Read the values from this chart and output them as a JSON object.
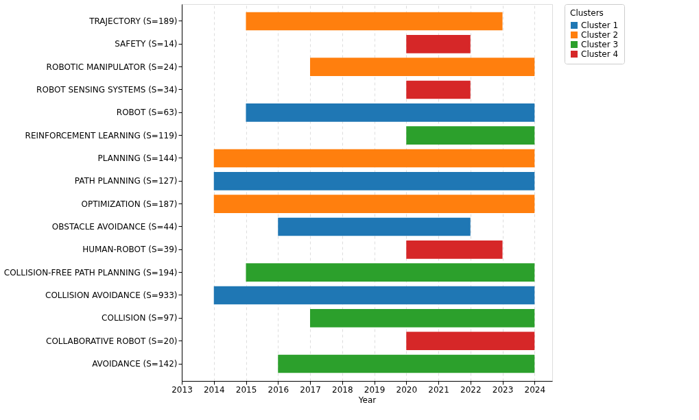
{
  "chart_data": {
    "type": "bar",
    "orientation": "horizontal",
    "xlabel": "Year",
    "legend_title": "Clusters",
    "legend": "top right",
    "grid": "x",
    "categories": [
      "TRAJECTORY (S=189)",
      "SAFETY (S=14)",
      "ROBOTIC MANIPULATOR (S=24)",
      "ROBOT SENSING SYSTEMS (S=34)",
      "ROBOT (S=63)",
      "REINFORCEMENT LEARNING (S=119)",
      "PLANNING (S=144)",
      "PATH PLANNING (S=127)",
      "OPTIMIZATION (S=187)",
      "OBSTACLE AVOIDANCE (S=44)",
      "HUMAN-ROBOT (S=39)",
      "COLLISION-FREE PATH PLANNING (S=194)",
      "COLLISION AVOIDANCE (S=933)",
      "COLLISION (S=97)",
      "COLLABORATIVE ROBOT (S=20)",
      "AVOIDANCE (S=142)"
    ],
    "xlim": [
      2013,
      2024.55
    ],
    "xticks": [
      2013,
      2014,
      2015,
      2016,
      2017,
      2018,
      2019,
      2020,
      2021,
      2022,
      2023,
      2024
    ],
    "series": [
      {
        "name": "Cluster 1",
        "color": "#1f77b4",
        "base": [
          null,
          null,
          null,
          null,
          2015,
          null,
          null,
          2014,
          null,
          2016,
          null,
          null,
          2014,
          null,
          null,
          null
        ],
        "values": [
          null,
          null,
          null,
          null,
          9,
          null,
          null,
          10,
          null,
          6,
          null,
          null,
          10,
          null,
          null,
          null
        ]
      },
      {
        "name": "Cluster 2",
        "color": "#ff7f0e",
        "base": [
          2015,
          null,
          2017,
          null,
          null,
          null,
          2014,
          null,
          2014,
          null,
          null,
          null,
          null,
          null,
          null,
          null
        ],
        "values": [
          8,
          null,
          7,
          null,
          null,
          null,
          10,
          null,
          10,
          null,
          null,
          null,
          null,
          null,
          null,
          null
        ]
      },
      {
        "name": "Cluster 3",
        "color": "#2ca02c",
        "base": [
          null,
          null,
          null,
          null,
          null,
          2020,
          null,
          null,
          null,
          null,
          null,
          2015,
          null,
          2017,
          null,
          2016
        ],
        "values": [
          null,
          null,
          null,
          null,
          null,
          4,
          null,
          null,
          null,
          null,
          null,
          9,
          null,
          7,
          null,
          8
        ]
      },
      {
        "name": "Cluster 4",
        "color": "#d62728",
        "base": [
          null,
          2020,
          null,
          2020,
          null,
          null,
          null,
          null,
          null,
          null,
          2020,
          null,
          null,
          null,
          2020,
          null
        ],
        "values": [
          null,
          2,
          null,
          2,
          null,
          null,
          null,
          null,
          null,
          null,
          3,
          null,
          null,
          null,
          4,
          null
        ]
      }
    ]
  }
}
